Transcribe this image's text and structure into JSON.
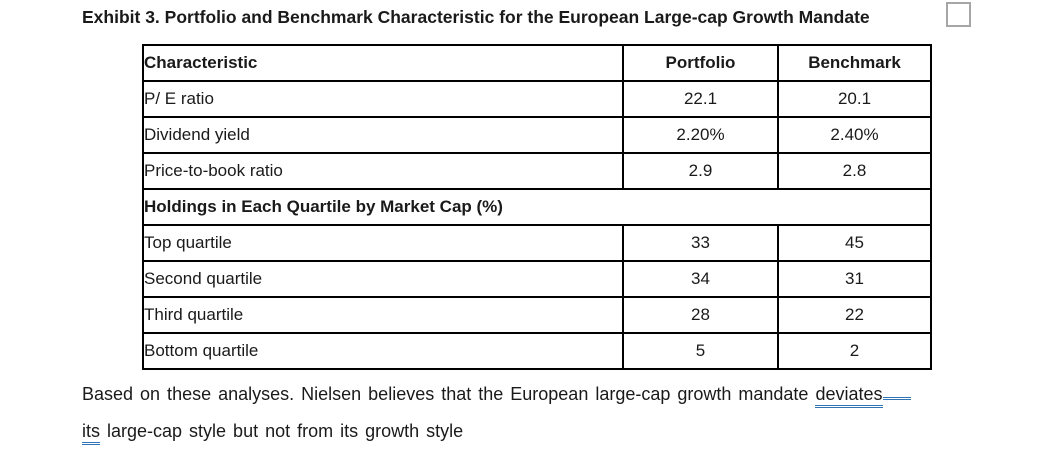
{
  "title": {
    "text": "Exhibit 3. Portfolio and Benchmark Characteristic for the European Large-cap Growth Mandate"
  },
  "table": {
    "columns": [
      "Characteristic",
      "Portfolio",
      "Benchmark"
    ],
    "rows": [
      {
        "type": "data",
        "label": "P/ E ratio",
        "portfolio": "22.1",
        "benchmark": "20.1"
      },
      {
        "type": "data",
        "label": "Dividend yield",
        "portfolio": "2.20%",
        "benchmark": "2.40%"
      },
      {
        "type": "data",
        "label": "Price-to-book ratio",
        "portfolio": "2.9",
        "benchmark": "2.8"
      },
      {
        "type": "section",
        "label": "Holdings in Each Quartile by Market Cap (%)"
      },
      {
        "type": "data",
        "label": "Top quartile",
        "portfolio": "33",
        "benchmark": "45"
      },
      {
        "type": "data",
        "label": "Second quartile",
        "portfolio": "34",
        "benchmark": "31"
      },
      {
        "type": "data",
        "label": "Third quartile",
        "portfolio": "28",
        "benchmark": "22"
      },
      {
        "type": "data",
        "label": "Bottom quartile",
        "portfolio": "5",
        "benchmark": "2"
      }
    ]
  },
  "paragraph": {
    "line1_before": "Based on these analyses. Nielsen believes that the European large-cap growth mandate ",
    "line1_underlined": "deviates",
    "line2_underlined": "its",
    "line2_after": " large-cap style but not from its growth style"
  },
  "colors": {
    "text": "#1a1a1a",
    "table_border": "#000000",
    "grammar_underline": "#2e74b6",
    "placeholder_border": "#a6a6a6",
    "background": "#ffffff"
  }
}
